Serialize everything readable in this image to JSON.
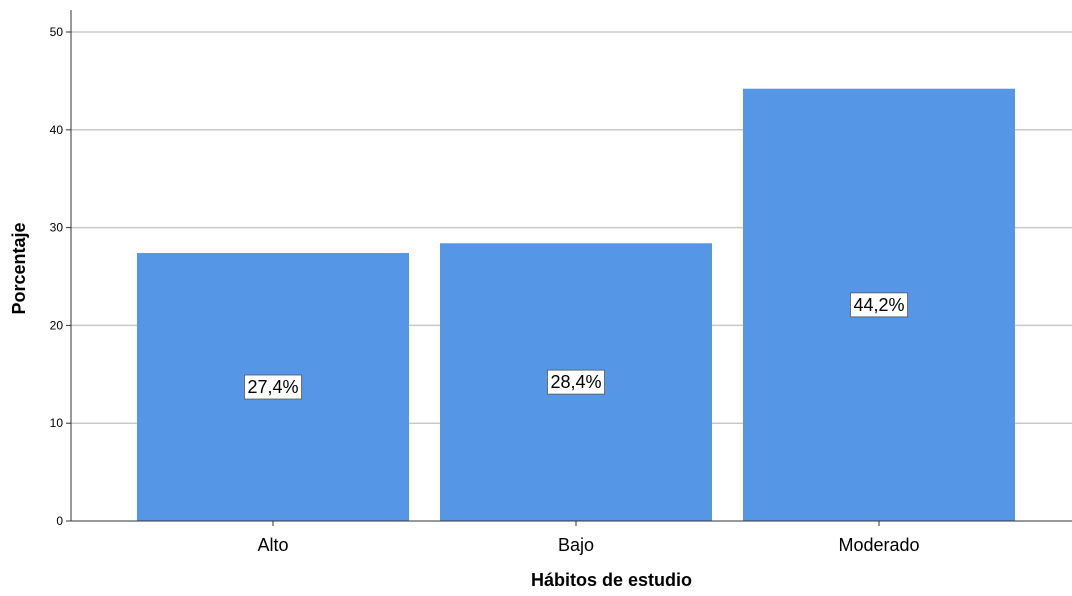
{
  "chart_data": {
    "type": "bar",
    "title": "",
    "xlabel": "Hábitos de estudio",
    "ylabel": "Porcentaje",
    "categories": [
      "Alto",
      "Bajo",
      "Moderado"
    ],
    "values": [
      27.4,
      28.4,
      44.2
    ],
    "data_labels": [
      "27,4%",
      "28,4%",
      "44,2%"
    ],
    "ylim": [
      0,
      50
    ],
    "yticks": [
      "0",
      "10",
      "20",
      "30",
      "40",
      "50"
    ],
    "grid": true,
    "legend": "none",
    "bar_color": "#5596e6",
    "grid_color": "#c8c8c8"
  }
}
